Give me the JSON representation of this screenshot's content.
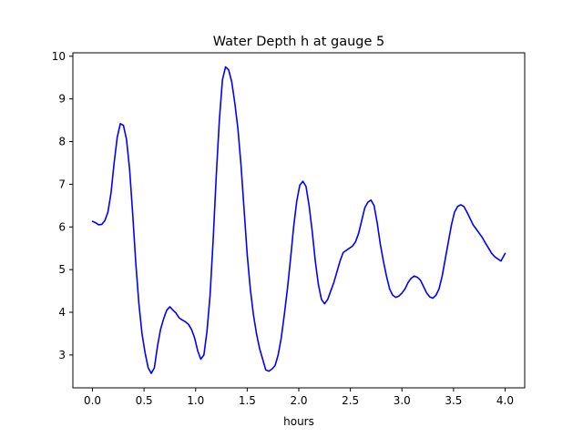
{
  "chart_data": {
    "type": "line",
    "title": "Water Depth h at gauge 5",
    "xlabel": "hours",
    "ylabel": "",
    "xlim": [
      -0.19,
      4.19
    ],
    "ylim": [
      2.23,
      10.08
    ],
    "xticks": [
      0.0,
      0.5,
      1.0,
      1.5,
      2.0,
      2.5,
      3.0,
      3.5,
      4.0
    ],
    "xtick_labels": [
      "0.0",
      "0.5",
      "1.0",
      "1.5",
      "2.0",
      "2.5",
      "3.0",
      "3.5",
      "4.0"
    ],
    "yticks": [
      3,
      4,
      5,
      6,
      7,
      8,
      9,
      10
    ],
    "ytick_labels": [
      "3",
      "4",
      "5",
      "6",
      "7",
      "8",
      "9",
      "10"
    ],
    "grid": false,
    "series": [
      {
        "color": "#0000ff",
        "x": [
          0.0,
          0.03,
          0.06,
          0.09,
          0.12,
          0.15,
          0.18,
          0.21,
          0.24,
          0.27,
          0.3,
          0.33,
          0.36,
          0.39,
          0.42,
          0.45,
          0.48,
          0.51,
          0.54,
          0.57,
          0.6,
          0.63,
          0.66,
          0.69,
          0.72,
          0.75,
          0.78,
          0.81,
          0.84,
          0.87,
          0.9,
          0.93,
          0.96,
          0.99,
          1.02,
          1.05,
          1.08,
          1.11,
          1.14,
          1.17,
          1.2,
          1.23,
          1.26,
          1.29,
          1.32,
          1.35,
          1.38,
          1.41,
          1.44,
          1.47,
          1.5,
          1.53,
          1.56,
          1.59,
          1.62,
          1.65,
          1.68,
          1.71,
          1.74,
          1.77,
          1.8,
          1.83,
          1.86,
          1.89,
          1.92,
          1.95,
          1.98,
          2.01,
          2.04,
          2.07,
          2.1,
          2.13,
          2.16,
          2.19,
          2.22,
          2.25,
          2.28,
          2.31,
          2.34,
          2.37,
          2.4,
          2.43,
          2.46,
          2.49,
          2.52,
          2.55,
          2.58,
          2.61,
          2.64,
          2.67,
          2.7,
          2.73,
          2.76,
          2.79,
          2.82,
          2.85,
          2.88,
          2.91,
          2.94,
          2.97,
          3.0,
          3.03,
          3.06,
          3.09,
          3.12,
          3.15,
          3.18,
          3.21,
          3.24,
          3.27,
          3.3,
          3.33,
          3.36,
          3.39,
          3.42,
          3.45,
          3.48,
          3.51,
          3.54,
          3.57,
          3.6,
          3.63,
          3.66,
          3.69,
          3.72,
          3.75,
          3.78,
          3.81,
          3.84,
          3.87,
          3.9,
          3.93,
          3.96,
          4.0
        ],
        "y": [
          6.13,
          6.1,
          6.05,
          6.06,
          6.15,
          6.35,
          6.8,
          7.5,
          8.1,
          8.42,
          8.38,
          8.05,
          7.35,
          6.3,
          5.15,
          4.2,
          3.5,
          3.05,
          2.7,
          2.57,
          2.7,
          3.2,
          3.6,
          3.85,
          4.05,
          4.13,
          4.05,
          3.98,
          3.87,
          3.82,
          3.78,
          3.72,
          3.6,
          3.4,
          3.1,
          2.9,
          3.0,
          3.55,
          4.4,
          5.7,
          7.2,
          8.5,
          9.45,
          9.75,
          9.68,
          9.4,
          8.9,
          8.3,
          7.45,
          6.4,
          5.35,
          4.55,
          3.95,
          3.5,
          3.15,
          2.9,
          2.65,
          2.62,
          2.67,
          2.75,
          3.0,
          3.4,
          3.95,
          4.55,
          5.25,
          6.0,
          6.6,
          6.98,
          7.07,
          6.95,
          6.5,
          5.9,
          5.2,
          4.65,
          4.3,
          4.2,
          4.3,
          4.5,
          4.7,
          4.95,
          5.2,
          5.4,
          5.45,
          5.5,
          5.55,
          5.65,
          5.85,
          6.15,
          6.45,
          6.58,
          6.63,
          6.5,
          6.1,
          5.6,
          5.2,
          4.85,
          4.55,
          4.4,
          4.35,
          4.38,
          4.45,
          4.55,
          4.7,
          4.8,
          4.85,
          4.82,
          4.75,
          4.6,
          4.45,
          4.36,
          4.33,
          4.4,
          4.55,
          4.85,
          5.25,
          5.65,
          6.05,
          6.35,
          6.48,
          6.52,
          6.48,
          6.35,
          6.2,
          6.05,
          5.95,
          5.85,
          5.75,
          5.62,
          5.5,
          5.38,
          5.3,
          5.25,
          5.2,
          5.38
        ]
      }
    ]
  }
}
